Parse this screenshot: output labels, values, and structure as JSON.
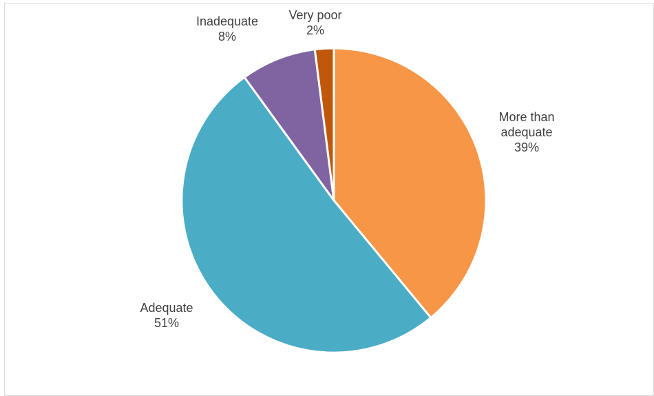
{
  "chart_data": {
    "type": "pie",
    "title": "",
    "legend": "none",
    "slices": [
      {
        "category": "More than adequate",
        "label_lines": [
          "More than",
          "adequate"
        ],
        "value": 39,
        "value_label": "39%",
        "color": "#F79646"
      },
      {
        "category": "Adequate",
        "label_lines": [
          "Adequate"
        ],
        "value": 51,
        "value_label": "51%",
        "color": "#4BACC6"
      },
      {
        "category": "Inadequate",
        "label_lines": [
          "Inadequate"
        ],
        "value": 8,
        "value_label": "8%",
        "color": "#8064A2"
      },
      {
        "category": "Very poor",
        "label_lines": [
          "Very poor"
        ],
        "value": 2,
        "value_label": "2%",
        "color": "#C0580C"
      }
    ]
  }
}
